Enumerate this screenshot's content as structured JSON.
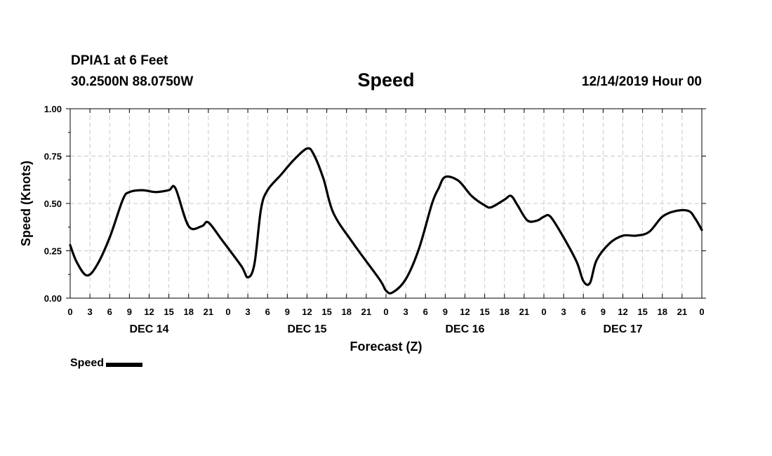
{
  "header": {
    "station": "DPIA1 at 6 Feet",
    "coords": "30.2500N 88.0750W",
    "title": "Speed",
    "datetime": "12/14/2019 Hour 00"
  },
  "legend": {
    "label": "Speed"
  },
  "chart_data": {
    "type": "line",
    "title": "Speed",
    "xlabel": "Forecast (Z)",
    "ylabel": "Speed (Knots)",
    "ylim": [
      0,
      1.0
    ],
    "xlim": [
      0,
      96
    ],
    "grid": true,
    "legend_position": "bottom-left",
    "y_ticks": [
      "0.00",
      "0.25",
      "0.50",
      "0.75",
      "1.00"
    ],
    "x_tick_labels": [
      "0",
      "3",
      "6",
      "9",
      "12",
      "15",
      "18",
      "21",
      "0",
      "3",
      "6",
      "9",
      "12",
      "15",
      "18",
      "21",
      "0",
      "3",
      "6",
      "9",
      "12",
      "15",
      "18",
      "21",
      "0",
      "3",
      "6",
      "9",
      "12",
      "15",
      "18",
      "21",
      "0"
    ],
    "day_labels": [
      {
        "label": "DEC 14",
        "hour": 12
      },
      {
        "label": "DEC 15",
        "hour": 36
      },
      {
        "label": "DEC 16",
        "hour": 60
      },
      {
        "label": "DEC 17",
        "hour": 84
      }
    ],
    "series": [
      {
        "name": "Speed",
        "color": "#000000",
        "x": [
          0,
          1,
          2.5,
          4,
          6,
          8,
          9,
          11,
          13,
          15,
          16,
          18,
          20,
          21,
          23,
          26,
          27,
          28,
          29,
          30,
          32,
          34,
          36,
          37,
          38.5,
          40,
          43,
          47,
          48,
          49,
          51,
          53,
          55,
          56,
          57,
          59,
          61,
          63,
          64,
          66,
          67,
          68,
          69.5,
          71,
          72,
          73,
          75,
          77,
          78,
          79,
          80,
          82,
          84,
          86,
          88,
          90,
          92,
          94,
          95,
          96
        ],
        "y": [
          0.28,
          0.19,
          0.12,
          0.17,
          0.32,
          0.52,
          0.56,
          0.57,
          0.56,
          0.57,
          0.58,
          0.38,
          0.38,
          0.4,
          0.31,
          0.17,
          0.11,
          0.18,
          0.47,
          0.57,
          0.65,
          0.73,
          0.79,
          0.76,
          0.63,
          0.45,
          0.29,
          0.1,
          0.04,
          0.03,
          0.1,
          0.26,
          0.5,
          0.58,
          0.64,
          0.62,
          0.54,
          0.49,
          0.48,
          0.52,
          0.54,
          0.49,
          0.41,
          0.41,
          0.43,
          0.43,
          0.32,
          0.19,
          0.09,
          0.08,
          0.2,
          0.29,
          0.33,
          0.33,
          0.35,
          0.43,
          0.46,
          0.46,
          0.42,
          0.36
        ]
      }
    ]
  }
}
